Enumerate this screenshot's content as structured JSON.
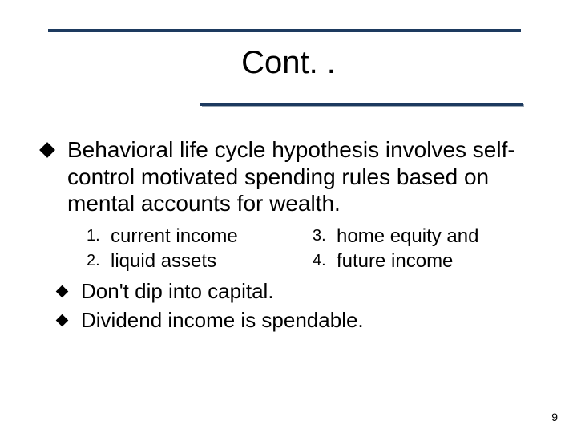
{
  "colors": {
    "rule_color": "#1d3a5f",
    "rule_shadow": "#9aa7b4",
    "background": "#ffffff",
    "text": "#000000"
  },
  "title": "Cont. .",
  "main_bullet": "Behavioral life cycle hypothesis involves self-control motivated spending rules based on mental accounts for wealth.",
  "list_left": [
    {
      "num": "1.",
      "text": "current income"
    },
    {
      "num": "2.",
      "text": "liquid assets"
    }
  ],
  "list_right": [
    {
      "num": "3.",
      "text": "home equity and"
    },
    {
      "num": "4.",
      "text": "future income"
    }
  ],
  "lower_bullets": [
    "Don't dip into capital.",
    "Dividend income is spendable."
  ],
  "slide_number": "9",
  "typography": {
    "title_fontsize": 40,
    "body_fontsize": 28,
    "subitem_fontsize": 24,
    "number_fontsize": 20,
    "lower_fontsize": 26,
    "slidenum_fontsize": 14
  }
}
